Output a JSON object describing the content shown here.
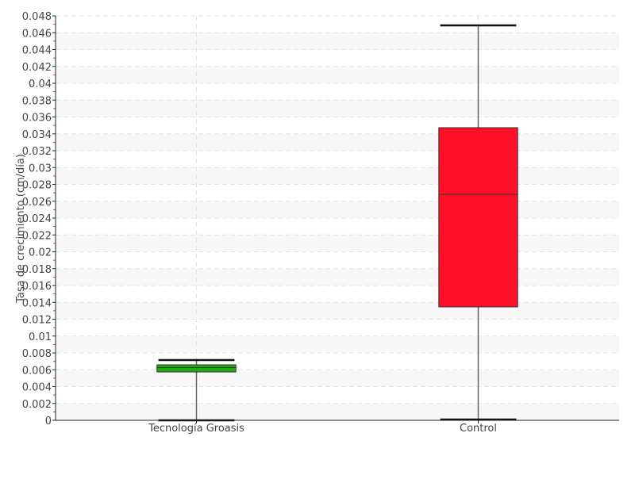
{
  "chart_data": {
    "type": "boxplot",
    "title": "",
    "xlabel": "",
    "ylabel": "Tasa de crecimiento (cm/día)",
    "ylim": [
      0,
      0.048
    ],
    "ytick_step": 0.002,
    "yticks": [
      "0",
      "0.002",
      "0.004",
      "0.006",
      "0.008",
      "0.01",
      "0.012",
      "0.014",
      "0.016",
      "0.018",
      "0.02",
      "0.022",
      "0.024",
      "0.026",
      "0.028",
      "0.03",
      "0.032",
      "0.034",
      "0.036",
      "0.038",
      "0.04",
      "0.042",
      "0.044",
      "0.046",
      "0.048"
    ],
    "grid": true,
    "categories": [
      "Tecnología Groasis",
      "Control"
    ],
    "boxes": [
      {
        "category": "Tecnología Groasis",
        "min": 0,
        "q1": 0.00574,
        "median": 0.00626,
        "q3": 0.00659,
        "max": 0.00715,
        "color": "#22aa11"
      },
      {
        "category": "Control",
        "min": 0.0001,
        "q1": 0.01346,
        "median": 0.02682,
        "q3": 0.03473,
        "max": 0.04687,
        "color": "#ff0f28"
      }
    ]
  }
}
